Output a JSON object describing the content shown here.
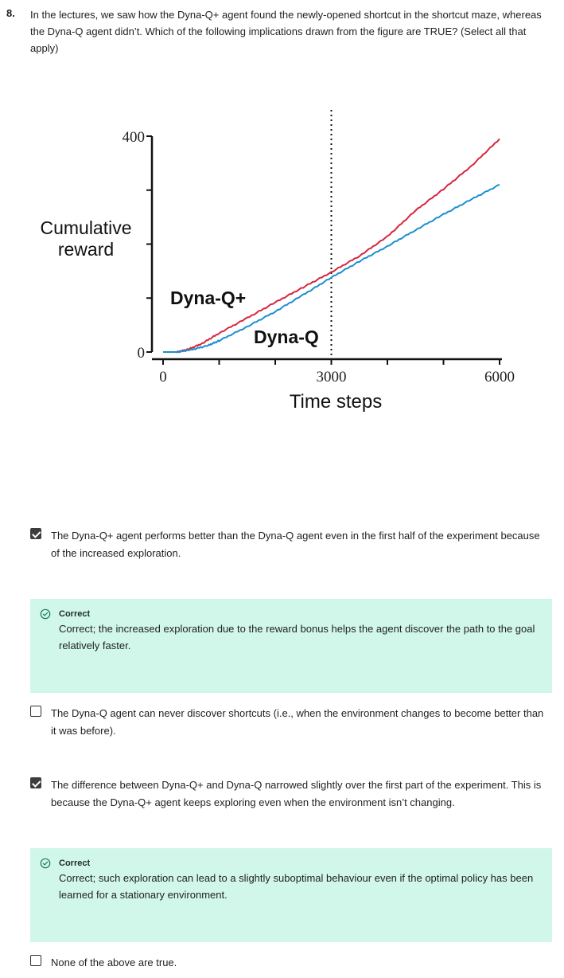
{
  "question": {
    "number": "8.",
    "text": "In the lectures, we saw how the Dyna-Q+ agent found the newly-opened shortcut in the shortcut maze, whereas the Dyna-Q agent didn’t. Which of the following implications drawn from the figure are TRUE? (Select all that apply)"
  },
  "chart_data": {
    "type": "line",
    "ylabel_lines": [
      "Cumulative",
      "reward"
    ],
    "xlabel": "Time steps",
    "x_ticks": [
      "0",
      "3000",
      "6000"
    ],
    "y_ticks": [
      "0",
      "400"
    ],
    "xlim": [
      0,
      6000
    ],
    "ylim": [
      0,
      400
    ],
    "vline_x": 3000,
    "series": [
      {
        "name": "Dyna-Q+",
        "color": "#d7263d",
        "x": [
          0,
          250,
          450,
          700,
          1000,
          1500,
          2000,
          2500,
          3000,
          3500,
          4000,
          4500,
          5000,
          5500,
          6000
        ],
        "y": [
          0,
          0,
          5,
          16,
          35,
          63,
          92,
          120,
          148,
          178,
          214,
          262,
          302,
          345,
          395
        ]
      },
      {
        "name": "Dyna-Q",
        "color": "#1a8fcf",
        "x": [
          0,
          250,
          500,
          800,
          1000,
          1500,
          2000,
          2500,
          3000,
          3500,
          4000,
          4500,
          5000,
          5500,
          6000
        ],
        "y": [
          0,
          0,
          4,
          12,
          21,
          47,
          75,
          106,
          138,
          168,
          196,
          226,
          255,
          283,
          310
        ]
      }
    ]
  },
  "options": [
    {
      "text": "The Dyna-Q+ agent performs better than the Dyna-Q agent even in the first half of the experiment because of the increased exploration.",
      "checked": true
    },
    {
      "text": "The Dyna-Q agent can never discover shortcuts (i.e., when the environment changes to become better than it was before).",
      "checked": false
    },
    {
      "text": "The difference between Dyna-Q+ and Dyna-Q narrowed slightly over the first part of the experiment. This is because the Dyna-Q+ agent keeps exploring even when the environment isn’t changing.",
      "checked": true
    },
    {
      "text": "None of the above are true.",
      "checked": false
    }
  ],
  "feedback": [
    {
      "status": "Correct",
      "text": "Correct; the increased exploration due to the reward bonus helps the agent discover the path to the goal relatively faster."
    },
    {
      "status": "Correct",
      "text": "Correct; such exploration can lead to a slightly suboptimal behaviour even if the optimal policy has been learned for a stationary environment."
    }
  ],
  "icons": {
    "checkbox_checked": "checkmark-icon",
    "feedback_correct": "check-circle-icon"
  },
  "colors": {
    "feedback_bg": "#d1f7ea",
    "correct_icon": "#1b7a5a"
  }
}
